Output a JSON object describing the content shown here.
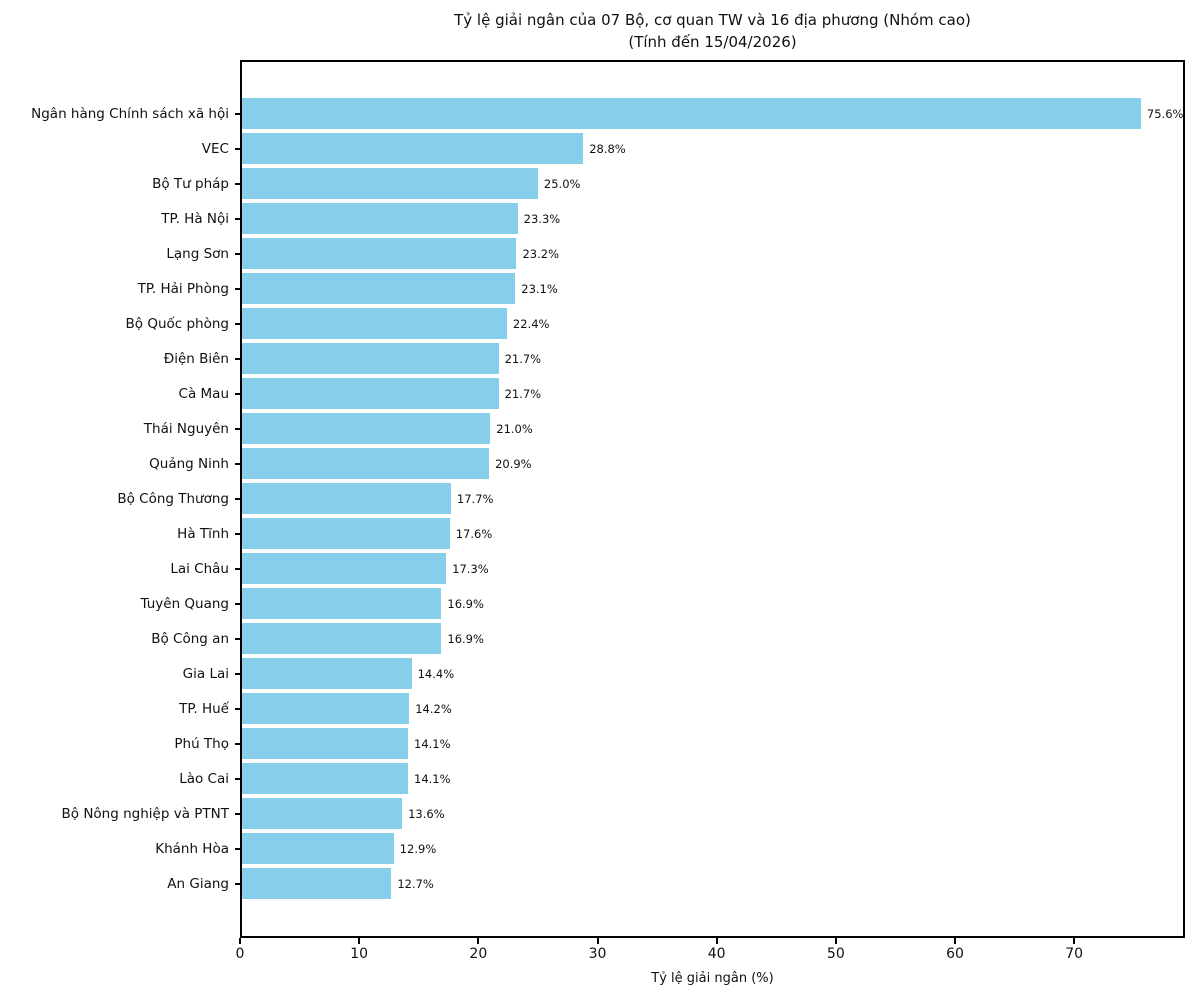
{
  "chart_data": {
    "type": "bar",
    "orientation": "horizontal",
    "title": "Tỷ lệ giải ngân của 07 Bộ, cơ quan TW và 16 địa phương (Nhóm cao)",
    "subtitle": "(Tính đến 15/04/2026)",
    "xlabel": "Tỷ lệ giải ngân (%)",
    "xlim": [
      0,
      79.3
    ],
    "xticks": [
      0,
      10,
      20,
      30,
      40,
      50,
      60,
      70
    ],
    "grid": false,
    "legend_position": "none",
    "bar_color": "#87CEEB",
    "axis_color": "#000000",
    "categories": [
      "Ngân hàng Chính sách xã hội",
      "VEC",
      "Bộ Tư pháp",
      "TP. Hà Nội",
      "Lạng Sơn",
      "TP. Hải Phòng",
      "Bộ Quốc phòng",
      "Điện Biên",
      "Cà Mau",
      "Thái Nguyên",
      "Quảng Ninh",
      "Bộ Công Thương",
      "Hà Tĩnh",
      "Lai Châu",
      "Tuyên Quang",
      "Bộ Công an",
      "Gia Lai",
      "TP. Huế",
      "Phú Thọ",
      "Lào Cai",
      "Bộ Nông nghiệp và PTNT",
      "Khánh Hòa",
      "An Giang"
    ],
    "values": [
      75.6,
      28.8,
      25.0,
      23.3,
      23.2,
      23.1,
      22.4,
      21.7,
      21.7,
      21.0,
      20.9,
      17.7,
      17.6,
      17.3,
      16.9,
      16.9,
      14.4,
      14.2,
      14.1,
      14.1,
      13.6,
      12.9,
      12.7
    ],
    "value_labels": [
      "75.6%",
      "28.8%",
      "25.0%",
      "23.3%",
      "23.2%",
      "23.1%",
      "22.4%",
      "21.7%",
      "21.7%",
      "21.0%",
      "20.9%",
      "17.7%",
      "17.6%",
      "17.3%",
      "16.9%",
      "16.9%",
      "14.4%",
      "14.2%",
      "14.1%",
      "14.1%",
      "13.6%",
      "12.9%",
      "12.7%"
    ]
  }
}
